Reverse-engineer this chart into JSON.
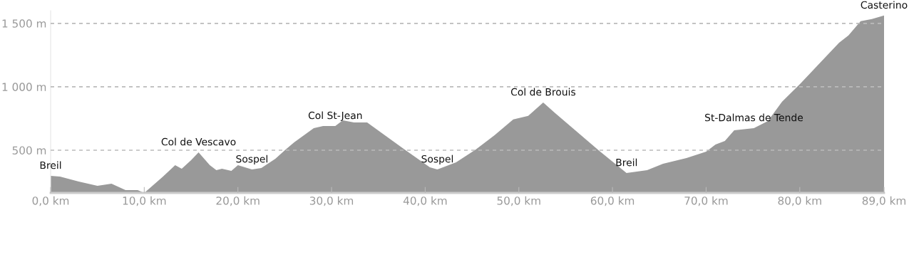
{
  "chart_data": {
    "type": "area",
    "x": [
      0,
      1,
      3,
      5,
      6.5,
      8,
      9.3,
      10,
      12,
      13.3,
      14,
      15,
      15.8,
      17,
      17.7,
      18.3,
      19.3,
      20,
      21.5,
      22.5,
      24,
      25.1,
      26,
      28.1,
      29.1,
      30.4,
      31.2,
      32.4,
      33.8,
      37.8,
      40.5,
      41.3,
      43.3,
      45.4,
      47.4,
      49.4,
      51.0,
      52.6,
      53.8,
      58.6,
      61.5,
      63.7,
      65.4,
      67.9,
      70.0,
      71.0,
      72.0,
      73.0,
      75.1,
      76.6,
      78.1,
      80.1,
      82.2,
      84.2,
      85.2,
      86.5,
      87.7,
      89
    ],
    "series": [
      {
        "color": "#999999",
        "values": [
          298,
          292,
          253,
          219,
          236,
          185,
          185,
          163,
          292,
          382,
          354,
          421,
          483,
          382,
          343,
          354,
          337,
          382,
          348,
          360,
          433,
          506,
          562,
          674,
          691,
          691,
          736,
          719,
          719,
          506,
          365,
          348,
          404,
          506,
          618,
          742,
          770,
          876,
          798,
          494,
          320,
          343,
          393,
          438,
          489,
          545,
          573,
          657,
          674,
          730,
          882,
          1028,
          1191,
          1348,
          1405,
          1517,
          1534,
          1562
        ]
      }
    ],
    "xlim": [
      0,
      89
    ],
    "ylim": [
      163,
      1600
    ],
    "xticks": [
      {
        "value": 0,
        "label": "0,0 km"
      },
      {
        "value": 10,
        "label": "10,0 km"
      },
      {
        "value": 20,
        "label": "20,0 km"
      },
      {
        "value": 30,
        "label": "30,0 km"
      },
      {
        "value": 40,
        "label": "40,0 km"
      },
      {
        "value": 50,
        "label": "50,0 km"
      },
      {
        "value": 60,
        "label": "60,0 km"
      },
      {
        "value": 70,
        "label": "70,0 km"
      },
      {
        "value": 80,
        "label": "80,0 km"
      },
      {
        "value": 89,
        "label": "89,0 km"
      }
    ],
    "yticks": [
      {
        "value": 500,
        "label": "500 m"
      },
      {
        "value": 1000,
        "label": "1 000 m"
      },
      {
        "value": 1500,
        "label": "1 500 m"
      }
    ],
    "grid": "y",
    "annotations": [
      {
        "text": "Breil",
        "x": 0,
        "y": 298
      },
      {
        "text": "Col de Vescavo",
        "x": 15.8,
        "y": 483
      },
      {
        "text": "Sospel",
        "x": 21.5,
        "y": 348
      },
      {
        "text": "Col St-Jean",
        "x": 30.4,
        "y": 691
      },
      {
        "text": "Sospel",
        "x": 41.3,
        "y": 348
      },
      {
        "text": "Col de Brouis",
        "x": 52.6,
        "y": 876
      },
      {
        "text": "Breil",
        "x": 61.5,
        "y": 320
      },
      {
        "text": "St-Dalmas de Tende",
        "x": 75.1,
        "y": 674
      },
      {
        "text": "Casterino",
        "x": 89,
        "y": 1562
      }
    ]
  }
}
